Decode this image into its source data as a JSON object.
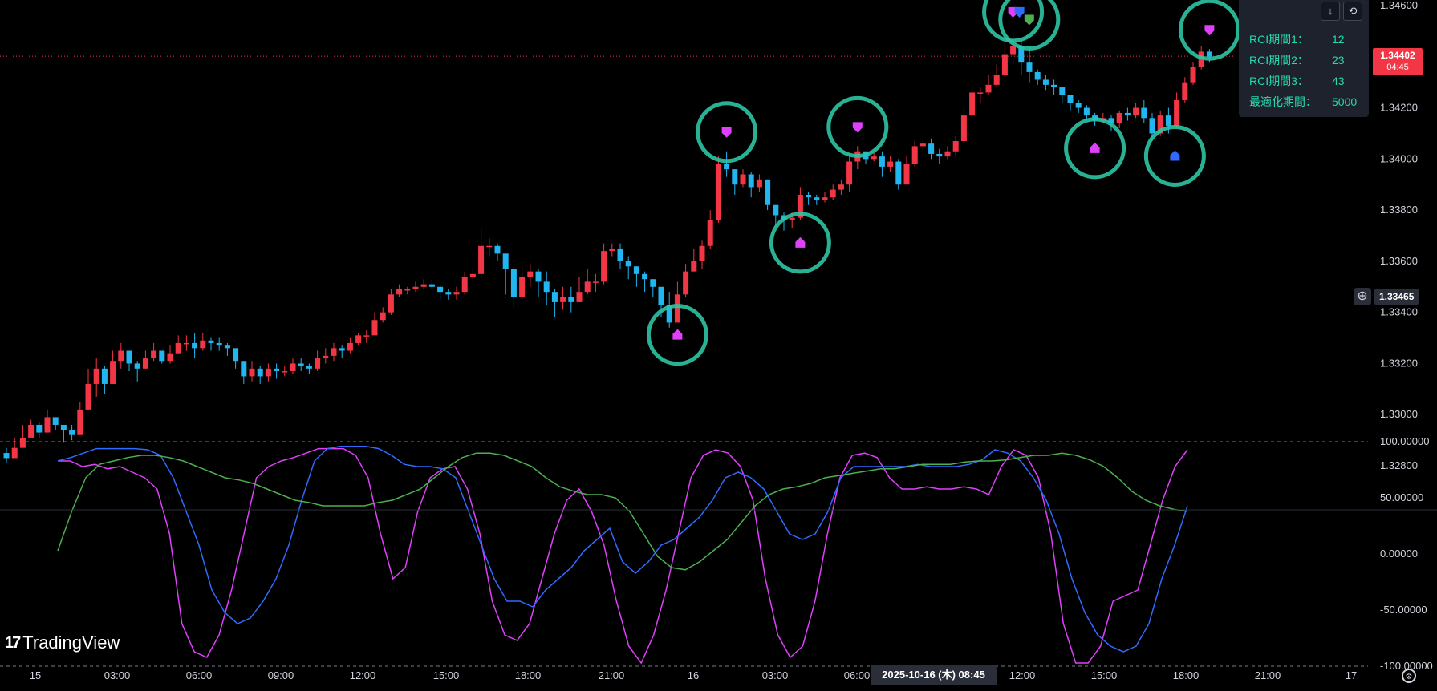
{
  "main_axis": {
    "ticks": [
      "1.34600",
      "1.34200",
      "1.34000",
      "1.33800",
      "1.33600",
      "1.33400",
      "1.33200",
      "1.33000",
      "1.32800"
    ],
    "current_price": "1.34402",
    "countdown": "04:45",
    "crosshair_price": "1.33465",
    "price_line_color": "#f23645"
  },
  "sub_axis": {
    "ticks": [
      "100.00000",
      "50.00000",
      "0.00000",
      "-50.00000",
      "-100.00000"
    ]
  },
  "time_axis": {
    "labels": [
      "15",
      "03:00",
      "06:00",
      "09:00",
      "12:00",
      "15:00",
      "18:00",
      "21:00",
      "16",
      "03:00",
      "06:00",
      "12:00",
      "15:00",
      "18:00",
      "21:00",
      "17"
    ],
    "highlight": "2025-10-16 (木)   08:45"
  },
  "info_panel": {
    "rows": [
      {
        "label": "RCI期間1：",
        "value": "12"
      },
      {
        "label": "RCI期間2：",
        "value": "23"
      },
      {
        "label": "RCI期間3：",
        "value": "43"
      },
      {
        "label": "最適化期間：",
        "value": "5000"
      }
    ],
    "buttons": [
      {
        "icon": "download-icon",
        "glyph": "↓"
      },
      {
        "icon": "refresh-icon",
        "glyph": "⟲"
      }
    ]
  },
  "watermark": {
    "text": "TradingView",
    "mark": "17"
  },
  "colors": {
    "up": "#f23645",
    "down": "#22b6f0",
    "circle": "#2ec4a4",
    "rci_short": "#e040fb",
    "rci_mid": "#2f6bff",
    "rci_long": "#4caf50",
    "marker_magenta": "#e040fb",
    "marker_blue": "#2f6bff",
    "marker_green": "#4caf50"
  },
  "chart_data": {
    "type": "candlestick",
    "ylim": [
      1.3274,
      1.3462
    ],
    "time_range": [
      "15 00:00",
      "16 21:00"
    ],
    "candles": [
      [
        0,
        1.3283,
        1.3281,
        1.3287
      ],
      [
        1,
        1.3287,
        1.3285,
        1.3291
      ],
      [
        2,
        1.3291,
        1.3289,
        1.3296
      ],
      [
        3,
        1.3296,
        1.3293,
        1.3298
      ],
      [
        4,
        1.3293,
        1.3291,
        1.3297
      ],
      [
        5,
        1.3299,
        1.3297,
        1.3302
      ],
      [
        6,
        1.3296,
        1.3294,
        1.3298
      ],
      [
        7,
        1.3294,
        1.3289,
        1.3296
      ],
      [
        8,
        1.3292,
        1.329,
        1.3296
      ],
      [
        9,
        1.3302,
        1.3292,
        1.3305
      ],
      [
        10,
        1.3312,
        1.3302,
        1.3318
      ],
      [
        11,
        1.3318,
        1.3307,
        1.3322
      ],
      [
        12,
        1.3312,
        1.3308,
        1.3319
      ],
      [
        13,
        1.3321,
        1.3312,
        1.3325
      ],
      [
        14,
        1.3325,
        1.3318,
        1.3328
      ],
      [
        15,
        1.332,
        1.3317,
        1.3324
      ],
      [
        16,
        1.3318,
        1.3313,
        1.3321
      ],
      [
        17,
        1.3322,
        1.3318,
        1.3325
      ],
      [
        18,
        1.3325,
        1.3321,
        1.3328
      ],
      [
        19,
        1.3321,
        1.332,
        1.3324
      ],
      [
        20,
        1.3324,
        1.332,
        1.3327
      ],
      [
        21,
        1.3328,
        1.3324,
        1.3331
      ],
      [
        22,
        1.3328,
        1.3325,
        1.3331
      ],
      [
        23,
        1.3326,
        1.3322,
        1.3332
      ],
      [
        24,
        1.3329,
        1.3325,
        1.3332
      ],
      [
        25,
        1.3328,
        1.3325,
        1.333
      ],
      [
        26,
        1.3327,
        1.3325,
        1.333
      ],
      [
        27,
        1.3326,
        1.3323,
        1.3328
      ],
      [
        28,
        1.3321,
        1.3318,
        1.3325
      ],
      [
        29,
        1.3315,
        1.3312,
        1.332
      ],
      [
        30,
        1.3318,
        1.3313,
        1.3321
      ],
      [
        31,
        1.3315,
        1.3312,
        1.3319
      ],
      [
        32,
        1.3318,
        1.3313,
        1.332
      ],
      [
        33,
        1.3317,
        1.3314,
        1.332
      ],
      [
        34,
        1.3317,
        1.3315,
        1.3319
      ],
      [
        35,
        1.332,
        1.3316,
        1.3322
      ],
      [
        36,
        1.3319,
        1.3317,
        1.3322
      ],
      [
        37,
        1.3318,
        1.3316,
        1.332
      ],
      [
        38,
        1.3322,
        1.3317,
        1.3325
      ],
      [
        39,
        1.3323,
        1.332,
        1.3326
      ],
      [
        40,
        1.3326,
        1.3321,
        1.3328
      ],
      [
        41,
        1.3325,
        1.3322,
        1.3327
      ],
      [
        42,
        1.3328,
        1.3324,
        1.333
      ],
      [
        43,
        1.3331,
        1.3327,
        1.3332
      ],
      [
        44,
        1.3331,
        1.3328,
        1.3333
      ],
      [
        45,
        1.3337,
        1.3331,
        1.334
      ],
      [
        46,
        1.334,
        1.3336,
        1.3342
      ],
      [
        47,
        1.3347,
        1.3339,
        1.3349
      ],
      [
        48,
        1.3349,
        1.3346,
        1.3351
      ],
      [
        49,
        1.3349,
        1.3347,
        1.335
      ],
      [
        50,
        1.335,
        1.3348,
        1.3352
      ],
      [
        51,
        1.3351,
        1.3349,
        1.3353
      ],
      [
        52,
        1.335,
        1.3349,
        1.3353
      ],
      [
        53,
        1.3348,
        1.3345,
        1.3351
      ],
      [
        54,
        1.3347,
        1.3345,
        1.3349
      ],
      [
        55,
        1.3348,
        1.3345,
        1.335
      ],
      [
        56,
        1.3354,
        1.3347,
        1.3356
      ],
      [
        57,
        1.3355,
        1.3352,
        1.3357
      ],
      [
        58,
        1.3366,
        1.3353,
        1.3373
      ],
      [
        59,
        1.3366,
        1.3362,
        1.3369
      ],
      [
        60,
        1.3363,
        1.336,
        1.3367
      ],
      [
        61,
        1.3357,
        1.3347,
        1.3362
      ],
      [
        62,
        1.3346,
        1.3342,
        1.3358
      ],
      [
        63,
        1.3354,
        1.3345,
        1.3358
      ],
      [
        64,
        1.3356,
        1.335,
        1.3359
      ],
      [
        65,
        1.3352,
        1.3346,
        1.3357
      ],
      [
        66,
        1.3348,
        1.3343,
        1.3356
      ],
      [
        67,
        1.3344,
        1.3338,
        1.3349
      ],
      [
        68,
        1.3346,
        1.3341,
        1.335
      ],
      [
        69,
        1.3344,
        1.334,
        1.335
      ],
      [
        70,
        1.3348,
        1.3344,
        1.3354
      ],
      [
        71,
        1.3352,
        1.3347,
        1.3357
      ],
      [
        72,
        1.3352,
        1.3348,
        1.3355
      ],
      [
        73,
        1.3364,
        1.3351,
        1.3367
      ],
      [
        74,
        1.3365,
        1.3362,
        1.3367
      ],
      [
        75,
        1.336,
        1.3357,
        1.3367
      ],
      [
        76,
        1.3358,
        1.3353,
        1.3362
      ],
      [
        77,
        1.3355,
        1.335,
        1.3358
      ],
      [
        78,
        1.3353,
        1.3348,
        1.3356
      ],
      [
        79,
        1.335,
        1.3346,
        1.3353
      ],
      [
        80,
        1.3343,
        1.3338,
        1.3349
      ],
      [
        81,
        1.3336,
        1.3334,
        1.3348
      ],
      [
        82,
        1.3347,
        1.334,
        1.3352
      ],
      [
        83,
        1.3356,
        1.3346,
        1.3359
      ],
      [
        84,
        1.336,
        1.3356,
        1.3365
      ],
      [
        85,
        1.3366,
        1.3357,
        1.3368
      ],
      [
        86,
        1.3376,
        1.3365,
        1.338
      ],
      [
        87,
        1.3398,
        1.3375,
        1.3401
      ],
      [
        88,
        1.3396,
        1.3393,
        1.3403
      ],
      [
        89,
        1.339,
        1.3386,
        1.3393
      ],
      [
        90,
        1.3394,
        1.3389,
        1.3396
      ],
      [
        91,
        1.3389,
        1.3385,
        1.3395
      ],
      [
        92,
        1.3392,
        1.3387,
        1.3394
      ],
      [
        93,
        1.3382,
        1.338,
        1.3392
      ],
      [
        94,
        1.3378,
        1.3374,
        1.3382
      ],
      [
        95,
        1.3376,
        1.3372,
        1.3379
      ],
      [
        96,
        1.3377,
        1.3373,
        1.3379
      ],
      [
        97,
        1.3386,
        1.3376,
        1.3389
      ],
      [
        98,
        1.3385,
        1.3382,
        1.3387
      ],
      [
        99,
        1.3384,
        1.3382,
        1.3386
      ],
      [
        100,
        1.3385,
        1.3383,
        1.3387
      ],
      [
        101,
        1.3388,
        1.3384,
        1.339
      ],
      [
        102,
        1.339,
        1.3386,
        1.3392
      ],
      [
        103,
        1.3399,
        1.3387,
        1.3401
      ],
      [
        104,
        1.3403,
        1.3396,
        1.3405
      ],
      [
        105,
        1.34,
        1.3398,
        1.3402
      ],
      [
        106,
        1.3401,
        1.3399,
        1.3403
      ],
      [
        107,
        1.3397,
        1.3393,
        1.3403
      ],
      [
        108,
        1.3399,
        1.3395,
        1.3401
      ],
      [
        109,
        1.339,
        1.3388,
        1.34
      ],
      [
        110,
        1.3398,
        1.339,
        1.3401
      ],
      [
        111,
        1.3405,
        1.3397,
        1.3407
      ],
      [
        112,
        1.3406,
        1.3403,
        1.3408
      ],
      [
        113,
        1.3402,
        1.34,
        1.3408
      ],
      [
        114,
        1.3401,
        1.3398,
        1.3404
      ],
      [
        115,
        1.3403,
        1.34,
        1.3405
      ],
      [
        116,
        1.3407,
        1.3401,
        1.3409
      ],
      [
        117,
        1.3417,
        1.3406,
        1.342
      ],
      [
        118,
        1.3426,
        1.3416,
        1.3429
      ],
      [
        119,
        1.3426,
        1.3422,
        1.3428
      ],
      [
        120,
        1.3429,
        1.3425,
        1.3433
      ],
      [
        121,
        1.3433,
        1.3428,
        1.3437
      ],
      [
        122,
        1.3441,
        1.3432,
        1.3445
      ],
      [
        123,
        1.3444,
        1.3437,
        1.345
      ],
      [
        124,
        1.3438,
        1.3433,
        1.3447
      ],
      [
        125,
        1.3434,
        1.343,
        1.3444
      ],
      [
        126,
        1.3431,
        1.3429,
        1.3435
      ],
      [
        127,
        1.3429,
        1.3427,
        1.3433
      ],
      [
        128,
        1.3428,
        1.3425,
        1.3431
      ],
      [
        129,
        1.3425,
        1.3422,
        1.3428
      ],
      [
        130,
        1.3422,
        1.3419,
        1.3425
      ],
      [
        131,
        1.342,
        1.3418,
        1.3423
      ],
      [
        132,
        1.3417,
        1.3415,
        1.3421
      ],
      [
        133,
        1.3415,
        1.3413,
        1.3418
      ],
      [
        134,
        1.3416,
        1.3414,
        1.3418
      ],
      [
        135,
        1.3414,
        1.3411,
        1.3417
      ],
      [
        136,
        1.3418,
        1.3412,
        1.3419
      ],
      [
        137,
        1.3417,
        1.3415,
        1.342
      ],
      [
        138,
        1.342,
        1.3416,
        1.3422
      ],
      [
        139,
        1.3416,
        1.3414,
        1.3423
      ],
      [
        140,
        1.341,
        1.3407,
        1.3418
      ],
      [
        141,
        1.3417,
        1.3409,
        1.3419
      ],
      [
        142,
        1.3413,
        1.341,
        1.342
      ],
      [
        143,
        1.3423,
        1.3412,
        1.3426
      ],
      [
        144,
        1.343,
        1.3422,
        1.3432
      ],
      [
        145,
        1.3436,
        1.3429,
        1.3438
      ],
      [
        146,
        1.3442,
        1.3435,
        1.3444
      ],
      [
        147,
        1.344,
        1.3438,
        1.3443
      ]
    ],
    "candle_open_note": "each candle: [index, close, low, high]; open = previous close",
    "signals": [
      {
        "type": "buy",
        "color": "magenta",
        "index": 82
      },
      {
        "type": "sell",
        "color": "magenta",
        "index": 88
      },
      {
        "type": "buy",
        "color": "magenta",
        "index": 97
      },
      {
        "type": "sell",
        "color": "magenta",
        "index": 104
      },
      {
        "type": "sell",
        "color": "magenta",
        "index": 123
      },
      {
        "type": "sell",
        "color": "blue",
        "index": 123
      },
      {
        "type": "sell",
        "color": "green",
        "index": 124
      },
      {
        "type": "buy",
        "color": "magenta",
        "index": 133
      },
      {
        "type": "buy",
        "color": "blue",
        "index": 142
      },
      {
        "type": "sell",
        "color": "magenta",
        "index": 147
      }
    ],
    "rci": {
      "ylim": [
        -100,
        100
      ],
      "series": [
        {
          "color": "#e040fb",
          "values": [
            85,
            85,
            80,
            82,
            78,
            80,
            75,
            70,
            60,
            20,
            -60,
            -85,
            -90,
            -70,
            -30,
            20,
            70,
            80,
            85,
            88,
            92,
            96,
            96,
            96,
            90,
            70,
            20,
            -20,
            -10,
            40,
            70,
            78,
            80,
            60,
            20,
            -40,
            -70,
            -75,
            -60,
            -20,
            20,
            50,
            60,
            40,
            10,
            -40,
            -80,
            -95,
            -70,
            -30,
            20,
            70,
            90,
            95,
            92,
            80,
            50,
            -20,
            -70,
            -90,
            -80,
            -40,
            20,
            70,
            90,
            92,
            88,
            70,
            60,
            60,
            62,
            60,
            60,
            62,
            60,
            55,
            80,
            95,
            90,
            70,
            20,
            -60,
            -95,
            -95,
            -80,
            -40,
            -35,
            -30,
            10,
            50,
            80,
            95
          ]
        },
        {
          "color": "#2f6bff",
          "values": [
            85,
            88,
            92,
            96,
            96,
            96,
            96,
            95,
            90,
            70,
            40,
            10,
            -30,
            -50,
            -60,
            -55,
            -40,
            -20,
            10,
            50,
            85,
            96,
            98,
            98,
            98,
            96,
            90,
            82,
            80,
            80,
            78,
            70,
            40,
            10,
            -20,
            -40,
            -40,
            -45,
            -30,
            -20,
            -10,
            5,
            15,
            25,
            -5,
            -15,
            -5,
            10,
            15,
            25,
            35,
            50,
            70,
            75,
            70,
            60,
            40,
            20,
            15,
            20,
            40,
            70,
            80,
            80,
            80,
            80,
            80,
            82,
            80,
            80,
            80,
            82,
            86,
            95,
            92,
            85,
            70,
            50,
            20,
            -20,
            -50,
            -70,
            -80,
            -85,
            -80,
            -60,
            -20,
            10,
            45
          ]
        },
        {
          "color": "#4caf50",
          "values": [
            5,
            40,
            70,
            82,
            85,
            88,
            90,
            90,
            88,
            85,
            80,
            75,
            70,
            68,
            65,
            60,
            55,
            50,
            48,
            45,
            45,
            45,
            45,
            48,
            50,
            55,
            60,
            70,
            80,
            88,
            92,
            92,
            90,
            85,
            80,
            70,
            62,
            58,
            55,
            55,
            52,
            40,
            20,
            0,
            -10,
            -12,
            -5,
            5,
            15,
            30,
            45,
            55,
            60,
            62,
            65,
            70,
            72,
            74,
            76,
            78,
            78,
            80,
            82,
            82,
            82,
            84,
            85,
            85,
            86,
            88,
            90,
            90,
            92,
            90,
            86,
            80,
            70,
            58,
            50,
            45,
            42,
            40
          ]
        }
      ]
    }
  }
}
